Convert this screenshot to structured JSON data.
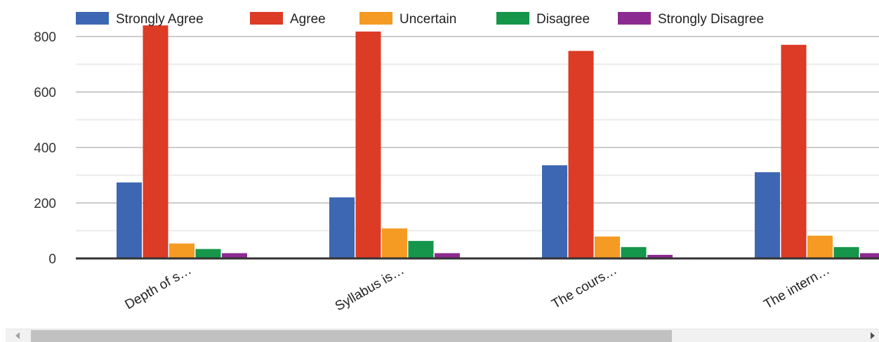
{
  "chart_data": {
    "type": "bar",
    "categories": [
      "Depth of s…",
      "Syllabus is…",
      "The cours…",
      "The intern…"
    ],
    "series": [
      {
        "name": "Strongly Agree",
        "color": "#3d67b2",
        "values": [
          274,
          220,
          336,
          311
        ]
      },
      {
        "name": "Agree",
        "color": "#dc3b25",
        "values": [
          840,
          818,
          748,
          770
        ]
      },
      {
        "name": "Uncertain",
        "color": "#f59a22",
        "values": [
          54,
          108,
          79,
          82
        ]
      },
      {
        "name": "Disagree",
        "color": "#15964a",
        "values": [
          34,
          63,
          41,
          41
        ]
      },
      {
        "name": "Strongly Disagree",
        "color": "#8c2a91",
        "values": [
          19,
          19,
          13,
          19
        ]
      }
    ],
    "y_ticks": [
      0,
      200,
      400,
      600,
      800
    ],
    "ylim": [
      0,
      850
    ],
    "grid": true,
    "legend_position": "top"
  }
}
